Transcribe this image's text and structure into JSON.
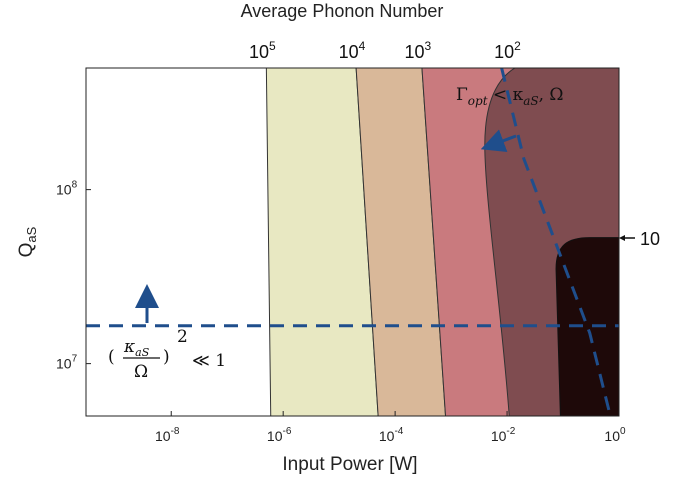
{
  "chart_data": {
    "type": "area",
    "title": "Average Phonon Number",
    "xlabel": "Input Power [W]",
    "ylabel": "Q",
    "ylabel_sub": "aS",
    "xscale": "log",
    "yscale": "log",
    "xlim": [
      3e-10,
      1
    ],
    "ylim": [
      5000000.0,
      500000000.0
    ],
    "x_ticks": [
      {
        "base": "10",
        "exp": "-8",
        "value": 1e-08
      },
      {
        "base": "10",
        "exp": "-6",
        "value": 1e-06
      },
      {
        "base": "10",
        "exp": "-4",
        "value": 0.0001
      },
      {
        "base": "10",
        "exp": "-2",
        "value": 0.01
      },
      {
        "base": "10",
        "exp": "0",
        "value": 1
      }
    ],
    "y_ticks": [
      {
        "base": "10",
        "exp": "7",
        "value": 10000000.0
      },
      {
        "base": "10",
        "exp": "8",
        "value": 100000000.0
      }
    ],
    "phonon_contours": [
      {
        "base": "10",
        "exp": "5",
        "bottom_power": 6e-07,
        "top_power": 5e-07,
        "color": "#e8e8c2"
      },
      {
        "base": "10",
        "exp": "4",
        "bottom_power": 5e-05,
        "top_power": 2e-05,
        "color": "#d9b899"
      },
      {
        "base": "10",
        "exp": "3",
        "bottom_power": 0.0008,
        "top_power": 0.0003,
        "color": "#c97a7e"
      },
      {
        "base": "10",
        "exp": "2",
        "bottom_power": 0.01,
        "top_power": 0.01,
        "color": "#7f4c50"
      },
      {
        "label": "10",
        "power_min": 0.07,
        "q_max": 53000000.0,
        "color": "#1e0909"
      }
    ],
    "boundaries": [
      {
        "name": "gamma_opt",
        "style": "dashed",
        "color": "#1f4e8c",
        "points": [
          [
            0.008,
            500000000.0
          ],
          [
            0.02,
            150000000.0
          ],
          [
            0.3,
            15000000.0
          ],
          [
            0.7,
            5000000.0
          ]
        ]
      },
      {
        "name": "kappa_ratio",
        "style": "dashed",
        "color": "#1f4e8c",
        "q": 16500000.0
      }
    ],
    "annotations": {
      "gamma_text_main": "Γ",
      "gamma_text_sub": "opt",
      "gamma_text_rest": " < κ",
      "gamma_text_sub2": "aS",
      "gamma_text_end": ", Ω",
      "ratio_numer": "κ",
      "ratio_numer_sub": "aS",
      "ratio_denom": "Ω",
      "ratio_exp": "2",
      "ratio_rest": "≪ 1"
    },
    "grid": false
  }
}
